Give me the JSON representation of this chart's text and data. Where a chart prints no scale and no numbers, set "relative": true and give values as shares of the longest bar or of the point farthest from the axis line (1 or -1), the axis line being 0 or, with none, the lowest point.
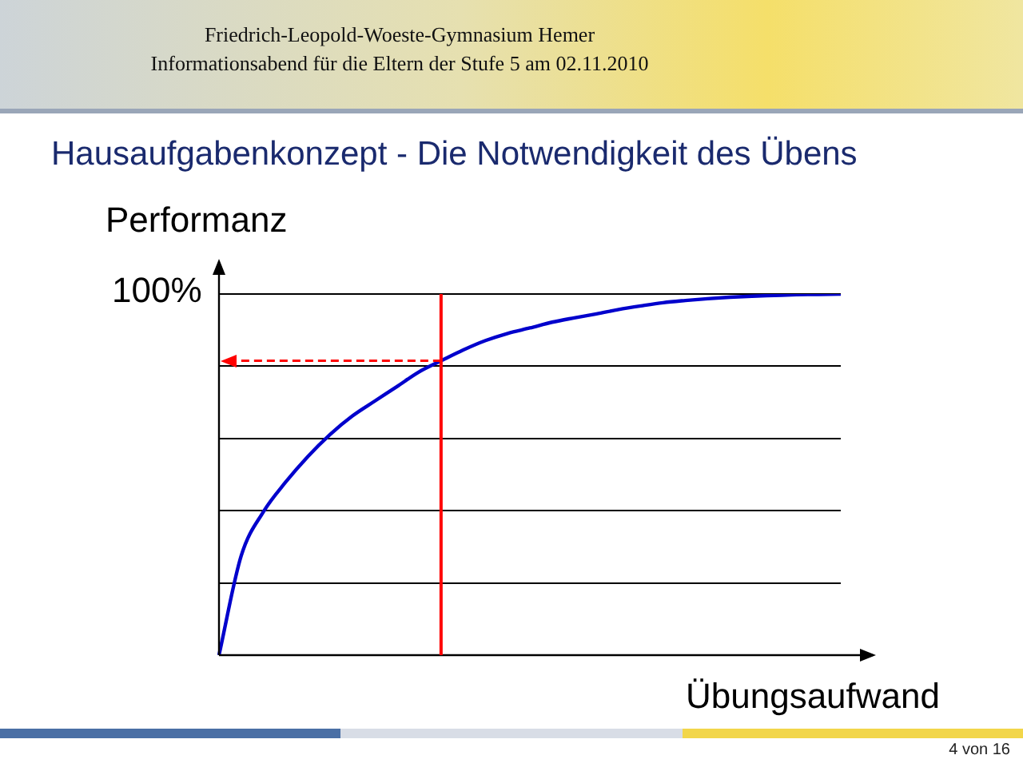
{
  "chart_data": {
    "type": "line",
    "title": "Hausaufgabenkonzept - Die Notwendigkeit des Übens",
    "ylabel": "Performanz",
    "xlabel": "Übungsaufwand",
    "relative": true,
    "grid": "y",
    "marker": "none",
    "annotations": [
      "Friedrich-Leopold-Woeste-Gymnasium Hemer",
      "Informationsabend für die Eltern der Stufe 5 am 02.11.2010",
      "4 von 16",
      "100%"
    ],
    "categories": [
      null,
      null,
      null,
      null,
      null,
      null,
      null,
      null,
      null,
      null,
      null,
      null,
      null,
      null,
      null,
      null,
      null,
      null,
      null,
      null,
      null,
      null,
      null,
      null,
      null,
      null,
      null,
      null,
      null
    ],
    "series": [
      {
        "color": "#0000cc",
        "values": [
          0,
          0.275,
          0.397,
          0.479,
          0.55,
          0.611,
          0.662,
          0.703,
          0.743,
          0.784,
          0.815,
          0.845,
          0.871,
          0.891,
          0.906,
          0.922,
          0.934,
          0.945,
          0.957,
          0.967,
          0.976,
          0.982,
          0.987,
          0.991,
          0.994,
          0.996,
          0.998,
          0.999,
          1
        ]
      }
    ],
    "ref_lines": [
      {
        "axis": "y",
        "value": 0.815,
        "color": "#ff0000",
        "line_style": "dashed"
      }
    ]
  }
}
